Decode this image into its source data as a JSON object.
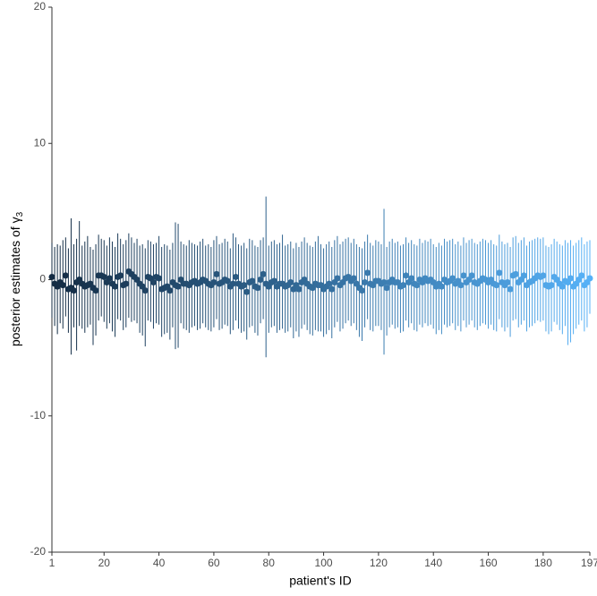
{
  "chart_data": {
    "type": "errorbar",
    "xlabel": "patient's ID",
    "ylabel": {
      "text": "posterior estimates of γ",
      "subscript": "3"
    },
    "xlim": [
      1,
      197
    ],
    "xticks": [
      1,
      20,
      40,
      60,
      80,
      100,
      120,
      140,
      160,
      180,
      197
    ],
    "ylim": [
      -20,
      20
    ],
    "yticks": [
      -20,
      -10,
      0,
      10,
      20
    ],
    "color_low": "#132B43",
    "color_high": "#56B1F7",
    "x": [
      1,
      2,
      3,
      4,
      5,
      6,
      7,
      8,
      9,
      10,
      11,
      12,
      13,
      14,
      15,
      16,
      17,
      18,
      19,
      20,
      21,
      22,
      23,
      24,
      25,
      26,
      27,
      28,
      29,
      30,
      31,
      32,
      33,
      34,
      35,
      36,
      37,
      38,
      39,
      40,
      41,
      42,
      43,
      44,
      45,
      46,
      47,
      48,
      49,
      50,
      51,
      52,
      53,
      54,
      55,
      56,
      57,
      58,
      59,
      60,
      61,
      62,
      63,
      64,
      65,
      66,
      67,
      68,
      69,
      70,
      71,
      72,
      73,
      74,
      75,
      76,
      77,
      78,
      79,
      80,
      81,
      82,
      83,
      84,
      85,
      86,
      87,
      88,
      89,
      90,
      91,
      92,
      93,
      94,
      95,
      96,
      97,
      98,
      99,
      100,
      101,
      102,
      103,
      104,
      105,
      106,
      107,
      108,
      109,
      110,
      111,
      112,
      113,
      114,
      115,
      116,
      117,
      118,
      119,
      120,
      121,
      122,
      123,
      124,
      125,
      126,
      127,
      128,
      129,
      130,
      131,
      132,
      133,
      134,
      135,
      136,
      137,
      138,
      139,
      140,
      141,
      142,
      143,
      144,
      145,
      146,
      147,
      148,
      149,
      150,
      151,
      152,
      153,
      154,
      155,
      156,
      157,
      158,
      159,
      160,
      161,
      162,
      163,
      164,
      165,
      166,
      167,
      168,
      169,
      170,
      171,
      172,
      173,
      174,
      175,
      176,
      177,
      178,
      179,
      180,
      181,
      182,
      183,
      184,
      185,
      186,
      187,
      188,
      189,
      190,
      191,
      192,
      193,
      194,
      195,
      196,
      197
    ],
    "values": [
      0.2,
      -0.3,
      -0.5,
      -0.2,
      -0.4,
      0.3,
      -0.7,
      -0.6,
      -0.8,
      -0.2,
      0.0,
      -0.3,
      -0.5,
      -0.4,
      -0.3,
      -0.6,
      -0.8,
      0.3,
      0.3,
      0.2,
      -0.2,
      0.1,
      -0.3,
      -0.5,
      0.2,
      0.3,
      -0.4,
      -0.3,
      0.6,
      0.4,
      0.2,
      0.0,
      -0.3,
      -0.5,
      -0.8,
      0.2,
      0.1,
      -0.2,
      0.2,
      0.1,
      -0.7,
      -0.6,
      -0.5,
      -0.8,
      -0.2,
      -0.4,
      -0.5,
      0.0,
      -0.3,
      -0.3,
      -0.4,
      -0.2,
      -0.1,
      -0.3,
      -0.2,
      0.0,
      -0.1,
      -0.3,
      -0.4,
      -0.2,
      0.4,
      -0.3,
      -0.2,
      0.0,
      -0.1,
      -0.5,
      -0.3,
      0.2,
      -0.3,
      -0.5,
      -0.4,
      -0.9,
      -0.2,
      -0.1,
      -0.5,
      -0.6,
      0.0,
      0.4,
      -0.3,
      -0.5,
      -0.2,
      -0.1,
      -0.5,
      -0.3,
      -0.3,
      -0.5,
      -0.4,
      -0.2,
      -0.7,
      -0.4,
      -0.7,
      -0.2,
      0.0,
      -0.3,
      -0.5,
      -0.6,
      -0.3,
      -0.4,
      -0.4,
      -0.7,
      -0.5,
      -0.3,
      -0.7,
      -0.2,
      0.1,
      -0.4,
      -0.2,
      0.1,
      0.2,
      -0.1,
      0.1,
      -0.3,
      -0.6,
      -0.8,
      -0.2,
      0.5,
      -0.3,
      -0.4,
      -0.1,
      -0.1,
      -0.3,
      -0.2,
      -0.6,
      -0.2,
      0.0,
      -0.2,
      -0.2,
      -0.5,
      -0.4,
      0.3,
      -0.2,
      0.1,
      -0.3,
      -0.4,
      0.0,
      -0.2,
      0.1,
      -0.1,
      0.0,
      -0.2,
      -0.5,
      -0.3,
      -0.5,
      0.0,
      -0.2,
      -0.1,
      0.1,
      -0.3,
      -0.1,
      -0.4,
      0.3,
      -0.2,
      0.0,
      0.3,
      -0.2,
      -0.3,
      -0.1,
      0.1,
      0.0,
      -0.2,
      0.0,
      -0.3,
      -0.4,
      0.5,
      -0.2,
      -0.4,
      -0.2,
      -0.7,
      0.3,
      0.4,
      -0.2,
      0.0,
      0.3,
      -0.4,
      -0.2,
      -0.1,
      0.1,
      0.3,
      0.2,
      0.3,
      -0.4,
      -0.5,
      -0.4,
      0.2,
      0.0,
      -0.3,
      -0.5,
      -0.1,
      -0.2,
      0.1,
      -0.5,
      -0.3,
      0.0,
      0.3,
      -0.4,
      -0.2,
      0.1
    ],
    "upper": [
      2.7,
      2.4,
      2.6,
      2.5,
      2.9,
      3.1,
      2.3,
      4.5,
      2.6,
      3.0,
      4.3,
      2.5,
      2.8,
      3.2,
      2.4,
      2.2,
      2.6,
      3.3,
      3.0,
      2.9,
      2.5,
      3.1,
      2.8,
      2.4,
      3.4,
      3.0,
      2.6,
      2.9,
      3.4,
      3.1,
      2.7,
      3.0,
      2.5,
      2.6,
      2.3,
      2.9,
      2.8,
      2.6,
      2.7,
      3.2,
      2.4,
      2.6,
      2.5,
      2.2,
      2.7,
      4.2,
      4.1,
      2.8,
      2.6,
      2.5,
      2.9,
      2.7,
      2.6,
      2.5,
      2.8,
      3.0,
      2.5,
      2.6,
      2.4,
      2.9,
      3.2,
      2.6,
      2.7,
      3.0,
      2.8,
      2.3,
      3.4,
      3.1,
      2.6,
      2.5,
      2.7,
      2.3,
      3.0,
      2.9,
      2.5,
      2.4,
      2.9,
      3.1,
      6.1,
      2.5,
      2.8,
      2.9,
      2.6,
      2.7,
      3.3,
      2.5,
      2.6,
      2.8,
      2.3,
      2.7,
      2.4,
      2.8,
      3.1,
      2.7,
      2.5,
      2.4,
      2.8,
      3.2,
      2.6,
      2.3,
      2.6,
      2.8,
      2.4,
      2.9,
      3.2,
      2.6,
      2.8,
      3.0,
      3.1,
      2.7,
      3.0,
      2.6,
      2.4,
      2.3,
      2.8,
      3.3,
      2.7,
      2.5,
      2.9,
      2.8,
      2.6,
      5.2,
      2.4,
      2.8,
      3.0,
      2.7,
      2.8,
      2.5,
      2.6,
      3.1,
      2.7,
      2.9,
      2.6,
      2.5,
      3.0,
      2.7,
      2.9,
      2.8,
      3.0,
      2.6,
      2.4,
      2.7,
      2.5,
      3.0,
      2.8,
      2.9,
      3.0,
      2.6,
      2.8,
      2.5,
      3.1,
      2.7,
      2.9,
      3.0,
      2.7,
      2.6,
      2.8,
      3.0,
      2.9,
      2.7,
      2.9,
      2.6,
      2.5,
      3.3,
      2.8,
      2.6,
      2.7,
      2.4,
      3.1,
      3.2,
      2.7,
      2.9,
      3.1,
      2.5,
      2.8,
      2.9,
      3.0,
      3.1,
      3.0,
      3.1,
      2.5,
      2.4,
      2.6,
      3.0,
      2.8,
      2.6,
      2.5,
      2.9,
      2.7,
      2.9,
      2.5,
      2.7,
      2.9,
      3.1,
      2.6,
      2.8,
      2.9
    ],
    "lower": [
      -2.8,
      -3.4,
      -4.0,
      -3.2,
      -3.6,
      -2.7,
      -3.9,
      -5.5,
      -3.5,
      -5.2,
      -3.4,
      -3.6,
      -3.9,
      -3.5,
      -3.3,
      -4.8,
      -4.1,
      -3.0,
      -2.7,
      -3.1,
      -3.6,
      -3.2,
      -3.8,
      -4.2,
      -2.9,
      -3.0,
      -3.7,
      -3.5,
      -2.8,
      -3.1,
      -3.0,
      -3.2,
      -3.9,
      -4.1,
      -4.9,
      -3.0,
      -3.1,
      -3.6,
      -3.2,
      -3.3,
      -4.2,
      -4.0,
      -3.9,
      -4.4,
      -3.5,
      -5.1,
      -5.0,
      -3.2,
      -3.6,
      -3.7,
      -3.9,
      -3.5,
      -3.4,
      -3.7,
      -3.6,
      -3.2,
      -3.5,
      -3.7,
      -3.8,
      -3.5,
      -2.9,
      -3.7,
      -3.6,
      -3.3,
      -3.4,
      -4.0,
      -3.7,
      -3.0,
      -3.6,
      -3.9,
      -3.8,
      -4.4,
      -3.5,
      -3.4,
      -3.9,
      -4.1,
      -3.2,
      -2.9,
      -5.7,
      -3.9,
      -3.5,
      -3.4,
      -3.9,
      -3.7,
      -3.6,
      -3.9,
      -3.8,
      -3.5,
      -4.3,
      -3.8,
      -4.2,
      -3.6,
      -3.3,
      -3.7,
      -4.0,
      -4.1,
      -3.7,
      -3.8,
      -3.8,
      -4.2,
      -4.0,
      -3.7,
      -4.3,
      -3.5,
      -3.1,
      -3.8,
      -3.6,
      -3.2,
      -3.0,
      -3.4,
      -3.2,
      -3.7,
      -4.2,
      -4.5,
      -3.5,
      -2.9,
      -3.7,
      -3.8,
      -3.4,
      -3.4,
      -3.7,
      -5.5,
      -4.1,
      -3.5,
      -3.3,
      -3.6,
      -3.5,
      -3.9,
      -3.8,
      -3.0,
      -3.5,
      -3.2,
      -3.7,
      -3.8,
      -3.3,
      -3.5,
      -3.2,
      -3.4,
      -3.3,
      -3.6,
      -4.0,
      -3.7,
      -4.0,
      -3.3,
      -3.5,
      -3.4,
      -3.2,
      -3.7,
      -3.4,
      -3.8,
      -3.0,
      -3.5,
      -3.3,
      -3.0,
      -3.5,
      -3.7,
      -3.4,
      -3.2,
      -3.3,
      -3.6,
      -3.3,
      -3.7,
      -3.8,
      -2.9,
      -3.5,
      -3.8,
      -3.5,
      -4.2,
      -3.0,
      -2.9,
      -3.5,
      -3.3,
      -3.0,
      -3.8,
      -3.5,
      -3.4,
      -3.2,
      -3.0,
      -3.1,
      -3.0,
      -3.8,
      -4.0,
      -3.8,
      -3.1,
      -3.3,
      -3.7,
      -4.0,
      -3.4,
      -4.8,
      -4.6,
      -4.0,
      -3.6,
      -3.3,
      -3.0,
      -3.8,
      -3.5,
      -2.5
    ]
  }
}
